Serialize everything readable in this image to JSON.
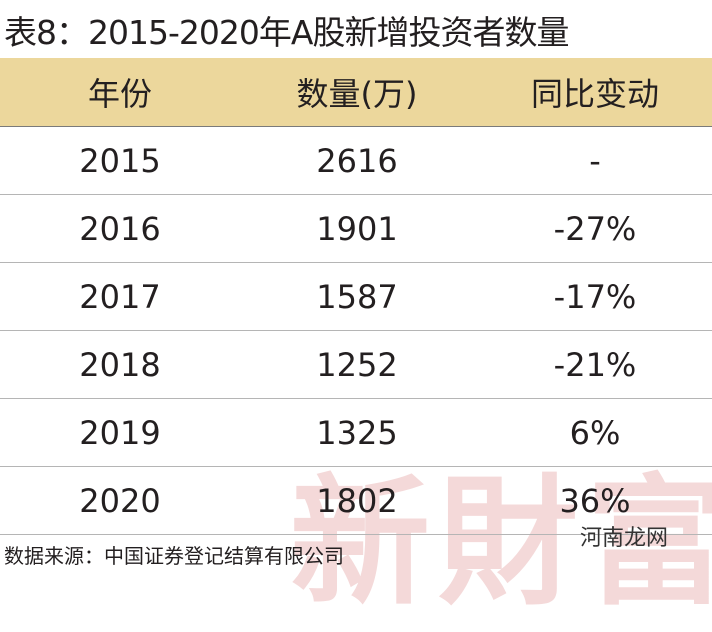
{
  "title": "表8：2015-2020年A股新增投资者数量",
  "table": {
    "header": [
      "年份",
      "数量(万)",
      "同比变动"
    ],
    "rows": [
      [
        "2015",
        "2616",
        "-"
      ],
      [
        "2016",
        "1901",
        "-27%"
      ],
      [
        "2017",
        "1587",
        "-17%"
      ],
      [
        "2018",
        "1252",
        "-21%"
      ],
      [
        "2019",
        "1325",
        "6%"
      ],
      [
        "2020",
        "1802",
        "36%"
      ]
    ]
  },
  "source": "数据来源：中国证券登记结算有限公司",
  "watermarks": [
    "新財富",
    "河南龙网"
  ]
}
